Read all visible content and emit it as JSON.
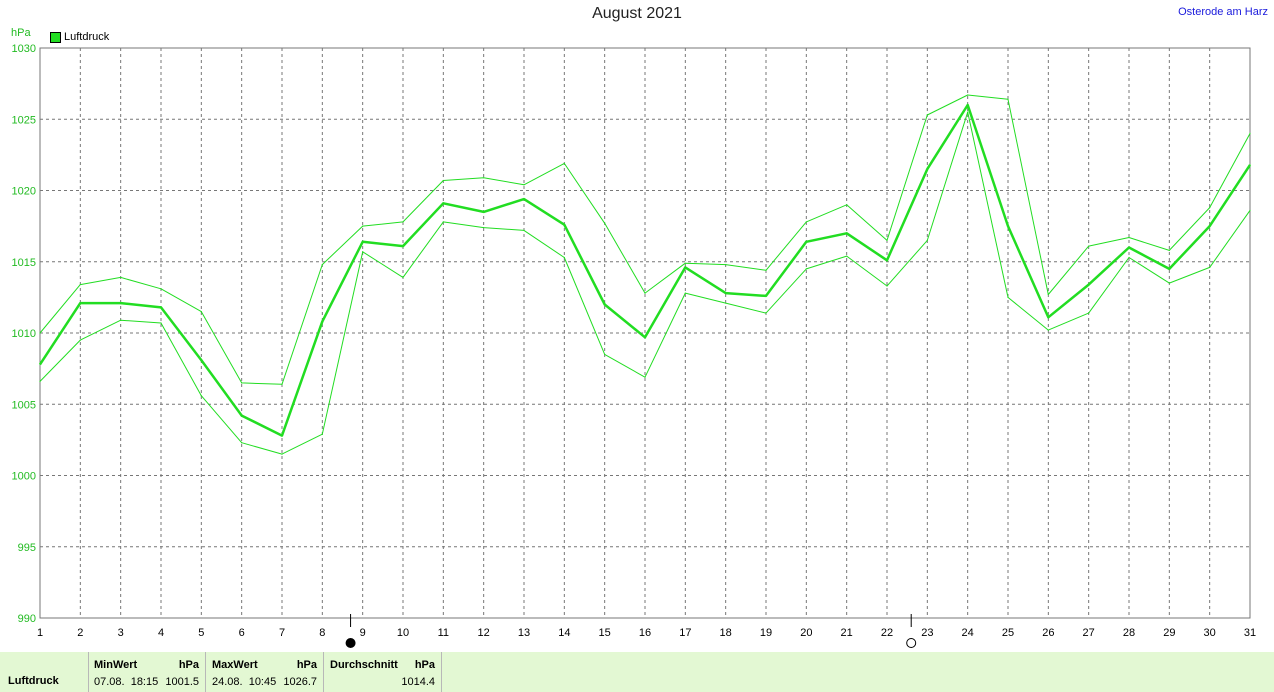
{
  "title": "August 2021",
  "location": "Osterode am Harz",
  "unit": "hPa",
  "legend": {
    "label": "Luftdruck",
    "color": "#22dd22"
  },
  "chart_data": {
    "type": "line",
    "ylabel": "hPa",
    "ylim": [
      990,
      1030
    ],
    "yticks": [
      990,
      995,
      1000,
      1005,
      1010,
      1015,
      1020,
      1025,
      1030
    ],
    "x": [
      1,
      2,
      3,
      4,
      5,
      6,
      7,
      8,
      9,
      10,
      11,
      12,
      13,
      14,
      15,
      16,
      17,
      18,
      19,
      20,
      21,
      22,
      23,
      24,
      25,
      26,
      27,
      28,
      29,
      30,
      31
    ],
    "grid": true,
    "legend_position": "top-left",
    "series": [
      {
        "name": "Luftdruck",
        "role": "mean",
        "values": [
          1007.8,
          1012.1,
          1012.1,
          1011.8,
          1008.1,
          1004.2,
          1002.8,
          1010.8,
          1016.4,
          1016.1,
          1019.1,
          1018.5,
          1019.4,
          1017.6,
          1012.0,
          1009.7,
          1014.6,
          1012.8,
          1012.6,
          1016.4,
          1017.0,
          1015.1,
          1021.5,
          1026.0,
          1017.5,
          1011.1,
          1013.4,
          1016.0,
          1014.5,
          1017.5,
          1021.8
        ]
      },
      {
        "role": "max",
        "values": [
          1010.0,
          1013.4,
          1013.9,
          1013.1,
          1011.5,
          1006.5,
          1006.4,
          1014.8,
          1017.5,
          1017.8,
          1020.7,
          1020.9,
          1020.4,
          1021.9,
          1017.7,
          1012.8,
          1014.9,
          1014.8,
          1014.4,
          1017.8,
          1019.0,
          1016.5,
          1025.3,
          1026.7,
          1026.4,
          1012.7,
          1016.1,
          1016.7,
          1015.8,
          1018.8,
          1024.0
        ]
      },
      {
        "role": "min",
        "values": [
          1006.6,
          1009.5,
          1010.9,
          1010.7,
          1005.6,
          1002.3,
          1001.5,
          1002.9,
          1015.7,
          1013.9,
          1017.8,
          1017.4,
          1017.2,
          1015.3,
          1008.5,
          1006.9,
          1012.8,
          1012.1,
          1011.4,
          1014.5,
          1015.4,
          1013.3,
          1016.5,
          1025.5,
          1012.5,
          1010.2,
          1011.4,
          1015.3,
          1013.5,
          1014.6,
          1018.6
        ]
      }
    ]
  },
  "moon_phases": [
    {
      "day": 8.7,
      "phase": "new-moon"
    },
    {
      "day": 22.6,
      "phase": "full-moon"
    }
  ],
  "stats": {
    "row_label": "Luftdruck",
    "min_header": "MinWert",
    "min_unit": "hPa",
    "min_date": "07.08.  18:15",
    "min_value": "1001.5",
    "max_header": "MaxWert",
    "max_unit": "hPa",
    "max_date": "24.08.  10:45",
    "max_value": "1026.7",
    "avg_header": "Durchschnitt",
    "avg_unit": "hPa",
    "avg_value": "1014.4"
  }
}
